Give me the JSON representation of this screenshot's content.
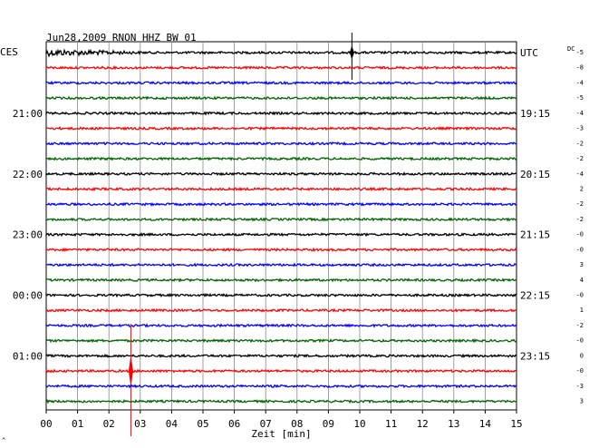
{
  "chart_data": {
    "type": "line",
    "title": "Jun28,2009   RNON HHZ BW 01",
    "left_zone_label": "CES",
    "right_zone_label": "UTC",
    "dc_label": "DC",
    "xlabel": "Zeit [min]",
    "xlim": [
      0,
      15
    ],
    "x_ticks": [
      "00",
      "01",
      "02",
      "03",
      "04",
      "05",
      "06",
      "07",
      "08",
      "09",
      "10",
      "11",
      "12",
      "13",
      "14",
      "15"
    ],
    "grid": true,
    "trace_colors": [
      "#000000",
      "#ff0000",
      "#0000ff",
      "#006400"
    ],
    "left_time_labels": [
      {
        "trace": 4,
        "label": "21:00"
      },
      {
        "trace": 8,
        "label": "22:00"
      },
      {
        "trace": 12,
        "label": "23:00"
      },
      {
        "trace": 16,
        "label": "00:00"
      },
      {
        "trace": 20,
        "label": "01:00"
      }
    ],
    "right_time_labels": [
      {
        "trace": 0,
        "label": "UTC"
      },
      {
        "trace": 4,
        "label": "19:15"
      },
      {
        "trace": 8,
        "label": "20:15"
      },
      {
        "trace": 12,
        "label": "21:15"
      },
      {
        "trace": 16,
        "label": "22:15"
      },
      {
        "trace": 20,
        "label": "23:15"
      }
    ],
    "dc_offsets": [
      "-5",
      "-8",
      "-4",
      "-5",
      "-4",
      "-3",
      "-2",
      "-2",
      "-4",
      "2",
      "-2",
      "-2",
      "-0",
      "-0",
      "3",
      "4",
      "-0",
      "1",
      "-2",
      "-0",
      "0",
      "-0",
      "-3",
      "3"
    ],
    "series": [
      {
        "values": [
          0.3
        ]
      },
      {
        "values": [
          0.3
        ]
      },
      {
        "values": [
          0.3
        ]
      },
      {
        "values": [
          0.3
        ]
      },
      {
        "values": [
          0.3
        ]
      },
      {
        "values": [
          0.3
        ]
      },
      {
        "values": [
          0.3
        ]
      },
      {
        "values": [
          0.3
        ]
      },
      {
        "values": [
          0.3
        ]
      },
      {
        "values": [
          0.3
        ]
      },
      {
        "values": [
          0.3
        ]
      },
      {
        "values": [
          0.3
        ]
      },
      {
        "values": [
          0.3
        ]
      },
      {
        "values": [
          0.3
        ]
      },
      {
        "values": [
          0.3
        ]
      },
      {
        "values": [
          0.3
        ]
      },
      {
        "values": [
          0.3
        ]
      },
      {
        "values": [
          0.3
        ]
      },
      {
        "values": [
          0.3
        ]
      },
      {
        "values": [
          0.3
        ]
      },
      {
        "values": [
          0.3
        ]
      },
      {
        "values": [
          0.3
        ]
      },
      {
        "values": [
          0.3
        ]
      },
      {
        "values": [
          0.3
        ]
      }
    ],
    "events": [
      {
        "trace": 0,
        "time_min": 9.75,
        "type": "spike",
        "amplitude": "large"
      },
      {
        "trace": 21,
        "time_min": 2.7,
        "type": "spike",
        "amplitude": "very large"
      }
    ],
    "corner_mark": "^"
  }
}
